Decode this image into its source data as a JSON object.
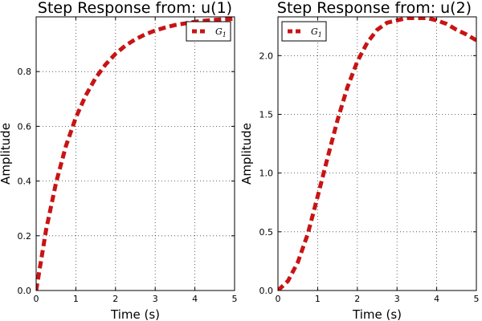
{
  "chart_data": [
    {
      "type": "line",
      "title": "Step Response from: u(1)",
      "xlabel": "Time (s)",
      "ylabel": "Amplitude",
      "xlim": [
        0,
        5
      ],
      "ylim": [
        0,
        1.0
      ],
      "xticks": [
        0,
        1,
        2,
        3,
        4,
        5
      ],
      "yticks": [
        0.0,
        0.2,
        0.4,
        0.6,
        0.8
      ],
      "ytick_labels": [
        "0.0",
        "0.2",
        "0.4",
        "0.6",
        "0.8"
      ],
      "grid": true,
      "legend_position": "top-right",
      "series": [
        {
          "name": "G1",
          "color": "#c81414",
          "style": "dashed",
          "x": [
            0,
            0.25,
            0.5,
            0.75,
            1.0,
            1.25,
            1.5,
            1.75,
            2.0,
            2.25,
            2.5,
            2.75,
            3.0,
            3.25,
            3.5,
            3.75,
            4.0,
            4.25,
            4.5,
            4.75,
            5.0
          ],
          "y": [
            0.0,
            0.221,
            0.393,
            0.528,
            0.632,
            0.713,
            0.777,
            0.826,
            0.865,
            0.895,
            0.918,
            0.936,
            0.95,
            0.961,
            0.97,
            0.976,
            0.982,
            0.986,
            0.989,
            0.991,
            0.993
          ]
        }
      ]
    },
    {
      "type": "line",
      "title": "Step Response from: u(2)",
      "xlabel": "Time (s)",
      "ylabel": "Amplitude",
      "xlim": [
        0,
        5
      ],
      "ylim": [
        0,
        2.33
      ],
      "xticks": [
        0,
        1,
        2,
        3,
        4,
        5
      ],
      "yticks": [
        0.0,
        0.5,
        1.0,
        1.5,
        2.0
      ],
      "ytick_labels": [
        "0.0",
        "0.5",
        "1.0",
        "1.5",
        "2.0"
      ],
      "grid": true,
      "legend_position": "top-left",
      "series": [
        {
          "name": "G1",
          "color": "#c81414",
          "style": "dashed",
          "x": [
            0,
            0.25,
            0.5,
            0.75,
            1.0,
            1.25,
            1.5,
            1.75,
            2.0,
            2.25,
            2.5,
            2.75,
            3.0,
            3.25,
            3.5,
            3.75,
            4.0,
            4.25,
            4.5,
            4.75,
            5.0
          ],
          "y": [
            0.0,
            0.08,
            0.24,
            0.48,
            0.8,
            1.13,
            1.45,
            1.73,
            1.95,
            2.11,
            2.22,
            2.28,
            2.3,
            2.32,
            2.32,
            2.32,
            2.3,
            2.27,
            2.22,
            2.18,
            2.13
          ]
        }
      ]
    }
  ]
}
